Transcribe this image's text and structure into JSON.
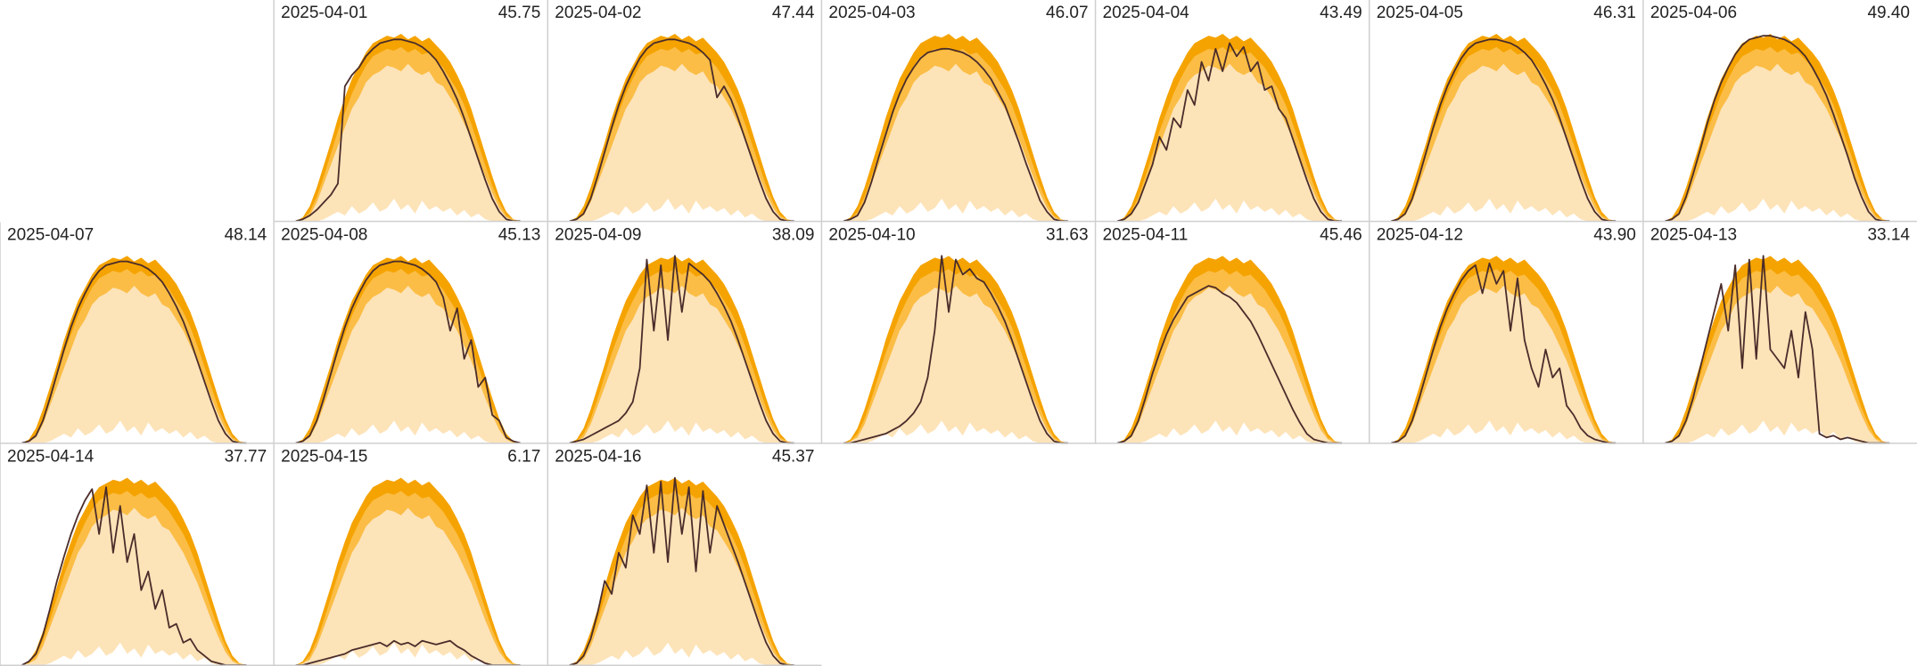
{
  "chart_data": {
    "type": "calendar",
    "ylim": [
      0,
      100
    ],
    "categories": [
      "2025-04-01",
      "2025-04-02",
      "2025-04-03",
      "2025-04-04",
      "2025-04-05",
      "2025-04-06",
      "2025-04-07",
      "2025-04-08",
      "2025-04-09",
      "2025-04-10",
      "2025-04-11",
      "2025-04-12",
      "2025-04-13",
      "2025-04-14",
      "2025-04-15",
      "2025-04-16"
    ],
    "values": [
      45.75,
      47.44,
      46.07,
      43.49,
      46.31,
      49.4,
      48.14,
      45.13,
      38.09,
      31.63,
      45.46,
      43.9,
      33.14,
      37.77,
      6.17,
      45.37
    ],
    "value_labels": [
      "45.75",
      "47.44",
      "46.07",
      "43.49",
      "46.31",
      "49.40",
      "48.14",
      "45.13",
      "38.09",
      "31.63",
      "45.46",
      "43.90",
      "33.14",
      "37.77",
      "6.17",
      "45.37"
    ],
    "bands": [
      {
        "color": "#f5a300",
        "values": [
          0,
          2,
          8,
          18,
          30,
          42,
          55,
          66,
          76,
          83,
          90,
          95,
          97,
          99,
          98,
          100,
          97,
          99,
          96,
          98,
          94,
          90,
          85,
          78,
          70,
          60,
          48,
          36,
          24,
          13,
          5,
          1,
          0
        ]
      },
      {
        "color": "#fbbd45",
        "values": [
          0,
          1,
          5,
          13,
          24,
          36,
          48,
          58,
          68,
          76,
          83,
          88,
          90,
          92,
          91,
          93,
          90,
          92,
          89,
          90,
          86,
          82,
          76,
          70,
          62,
          52,
          41,
          30,
          19,
          10,
          3,
          1,
          0
        ]
      },
      {
        "color": "#fde3b8",
        "values": [
          0,
          1,
          3,
          10,
          20,
          30,
          40,
          50,
          60,
          66,
          74,
          78,
          80,
          83,
          82,
          80,
          84,
          80,
          78,
          80,
          74,
          72,
          66,
          60,
          52,
          44,
          34,
          24,
          15,
          7,
          2,
          0,
          0
        ]
      },
      {
        "color": "#ffffff",
        "values": [
          0,
          0,
          0,
          0,
          1,
          3,
          5,
          3,
          8,
          4,
          6,
          10,
          5,
          7,
          12,
          6,
          9,
          4,
          11,
          6,
          8,
          5,
          7,
          3,
          6,
          2,
          4,
          1,
          0,
          0,
          0,
          0,
          0
        ]
      }
    ],
    "line_color": "#4a2c2a",
    "lines": [
      [
        0,
        1,
        3,
        6,
        10,
        14,
        20,
        72,
        78,
        82,
        88,
        92,
        95,
        96,
        97,
        97,
        96,
        95,
        93,
        90,
        86,
        80,
        73,
        65,
        55,
        44,
        33,
        22,
        12,
        5,
        1,
        0,
        0
      ],
      [
        0,
        1,
        4,
        12,
        24,
        37,
        50,
        62,
        72,
        80,
        87,
        92,
        95,
        96,
        97,
        97,
        96,
        95,
        93,
        90,
        86,
        66,
        72,
        65,
        55,
        44,
        33,
        22,
        12,
        5,
        1,
        0,
        0
      ],
      [
        0,
        1,
        3,
        10,
        21,
        34,
        46,
        58,
        68,
        76,
        82,
        87,
        90,
        91,
        92,
        92,
        91,
        90,
        88,
        85,
        81,
        76,
        69,
        62,
        52,
        42,
        31,
        21,
        11,
        5,
        1,
        0,
        0
      ],
      [
        0,
        1,
        4,
        10,
        20,
        30,
        45,
        38,
        55,
        50,
        70,
        62,
        85,
        75,
        92,
        80,
        95,
        88,
        93,
        80,
        85,
        70,
        72,
        60,
        55,
        44,
        33,
        22,
        12,
        5,
        1,
        0,
        0
      ],
      [
        0,
        1,
        4,
        12,
        24,
        37,
        50,
        62,
        72,
        80,
        87,
        92,
        95,
        96,
        97,
        97,
        96,
        95,
        93,
        90,
        86,
        80,
        73,
        65,
        55,
        44,
        33,
        22,
        12,
        5,
        1,
        0,
        0
      ],
      [
        0,
        1,
        4,
        13,
        25,
        38,
        52,
        64,
        74,
        82,
        89,
        94,
        97,
        98,
        99,
        99,
        98,
        97,
        95,
        92,
        88,
        82,
        75,
        67,
        57,
        46,
        35,
        23,
        13,
        5,
        1,
        0,
        0
      ],
      [
        0,
        1,
        4,
        12,
        24,
        37,
        50,
        62,
        72,
        80,
        87,
        92,
        95,
        96,
        97,
        97,
        96,
        95,
        93,
        90,
        86,
        80,
        73,
        65,
        55,
        44,
        33,
        22,
        12,
        5,
        1,
        0,
        0
      ],
      [
        0,
        1,
        4,
        12,
        24,
        37,
        50,
        62,
        72,
        80,
        87,
        92,
        95,
        96,
        97,
        97,
        96,
        95,
        93,
        90,
        86,
        78,
        60,
        72,
        45,
        55,
        30,
        35,
        15,
        12,
        3,
        1,
        0
      ],
      [
        0,
        1,
        2,
        4,
        6,
        8,
        10,
        12,
        16,
        22,
        40,
        98,
        60,
        95,
        55,
        100,
        70,
        96,
        93,
        90,
        86,
        80,
        73,
        65,
        55,
        44,
        33,
        22,
        12,
        5,
        1,
        0,
        0
      ],
      [
        0,
        0,
        1,
        2,
        3,
        4,
        5,
        7,
        9,
        12,
        16,
        22,
        35,
        60,
        100,
        70,
        98,
        90,
        93,
        88,
        86,
        80,
        73,
        65,
        55,
        44,
        33,
        22,
        12,
        5,
        1,
        0,
        0
      ],
      [
        0,
        1,
        4,
        12,
        24,
        37,
        48,
        58,
        66,
        72,
        78,
        80,
        82,
        84,
        83,
        80,
        78,
        75,
        70,
        65,
        58,
        50,
        42,
        34,
        26,
        18,
        11,
        5,
        2,
        1,
        0,
        0,
        0
      ],
      [
        0,
        1,
        4,
        12,
        24,
        37,
        50,
        62,
        72,
        80,
        87,
        92,
        95,
        80,
        96,
        85,
        92,
        60,
        88,
        55,
        40,
        30,
        50,
        35,
        40,
        20,
        15,
        8,
        4,
        2,
        1,
        0,
        0
      ],
      [
        0,
        1,
        4,
        12,
        24,
        40,
        55,
        70,
        85,
        60,
        95,
        40,
        98,
        45,
        100,
        50,
        45,
        40,
        60,
        35,
        70,
        50,
        5,
        3,
        4,
        2,
        3,
        2,
        1,
        0,
        0,
        0,
        0
      ],
      [
        0,
        2,
        6,
        16,
        30,
        45,
        58,
        70,
        80,
        88,
        94,
        70,
        95,
        60,
        85,
        55,
        70,
        40,
        50,
        30,
        40,
        20,
        22,
        12,
        14,
        8,
        5,
        2,
        1,
        0,
        0,
        0,
        0
      ],
      [
        0,
        0,
        1,
        2,
        3,
        4,
        5,
        6,
        8,
        9,
        10,
        11,
        12,
        10,
        13,
        11,
        12,
        10,
        13,
        12,
        11,
        12,
        13,
        10,
        8,
        5,
        3,
        1,
        0,
        0,
        0,
        0,
        0
      ],
      [
        0,
        1,
        5,
        14,
        28,
        45,
        38,
        60,
        52,
        80,
        70,
        96,
        60,
        98,
        55,
        100,
        70,
        95,
        50,
        93,
        60,
        85,
        75,
        65,
        55,
        44,
        33,
        22,
        12,
        5,
        1,
        0,
        0
      ]
    ]
  }
}
